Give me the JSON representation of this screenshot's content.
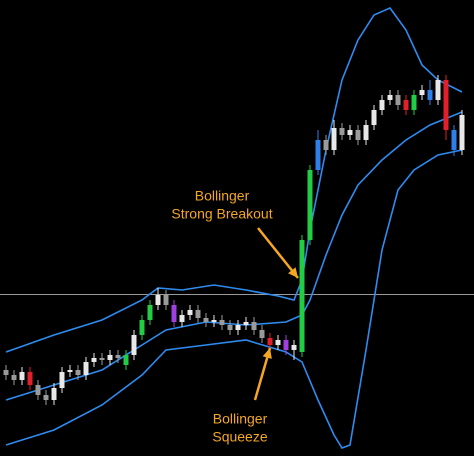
{
  "chart_data": {
    "type": "candlestick",
    "background": "#000000",
    "categories": [
      null,
      null,
      null,
      null,
      null,
      null,
      null,
      null,
      null,
      null,
      null,
      null,
      null,
      null,
      null,
      null,
      null,
      null,
      null,
      null,
      null,
      null,
      null,
      null,
      null,
      null,
      null,
      null,
      null,
      null,
      null,
      null,
      null,
      null,
      null,
      null,
      null,
      null,
      null,
      null,
      null,
      null,
      null,
      null,
      null,
      null,
      null,
      null,
      null,
      null,
      null,
      null,
      null,
      null,
      null,
      null,
      null,
      null
    ],
    "xlim": [
      -0.75,
      58.5
    ],
    "ylim": [
      0,
      456
    ],
    "open": [
      86,
      81,
      76,
      84,
      71,
      61,
      56,
      68,
      84,
      86,
      81,
      94,
      98,
      96,
      101,
      91,
      101,
      121,
      136,
      151,
      161,
      151,
      134,
      141,
      146,
      138,
      134,
      136,
      131,
      126,
      131,
      134,
      126,
      118,
      111,
      116,
      106,
      104,
      216,
      286,
      316,
      306,
      328,
      321,
      326,
      316,
      331,
      346,
      356,
      361,
      356,
      346,
      361,
      366,
      356,
      376,
      326,
      306
    ],
    "high": [
      91,
      86,
      89,
      89,
      76,
      66,
      73,
      89,
      91,
      91,
      99,
      103,
      103,
      106,
      106,
      106,
      126,
      141,
      156,
      168,
      166,
      156,
      146,
      151,
      151,
      143,
      141,
      141,
      136,
      136,
      139,
      139,
      131,
      123,
      121,
      121,
      116,
      221,
      291,
      326,
      321,
      336,
      333,
      331,
      331,
      336,
      351,
      361,
      366,
      366,
      361,
      366,
      371,
      376,
      381,
      381,
      331,
      346
    ],
    "low": [
      76,
      71,
      71,
      66,
      56,
      51,
      51,
      63,
      79,
      76,
      76,
      89,
      91,
      91,
      93,
      86,
      96,
      116,
      131,
      146,
      146,
      129,
      129,
      136,
      133,
      129,
      129,
      126,
      121,
      121,
      126,
      121,
      113,
      106,
      106,
      101,
      96,
      99,
      211,
      281,
      301,
      301,
      316,
      316,
      311,
      311,
      326,
      341,
      351,
      346,
      341,
      341,
      356,
      351,
      351,
      316,
      300,
      301
    ],
    "close": [
      81,
      76,
      84,
      71,
      61,
      56,
      68,
      84,
      86,
      81,
      94,
      98,
      96,
      101,
      98,
      101,
      121,
      136,
      151,
      161,
      151,
      134,
      141,
      146,
      138,
      134,
      136,
      131,
      126,
      131,
      134,
      126,
      118,
      111,
      116,
      106,
      111,
      216,
      286,
      316,
      306,
      328,
      321,
      326,
      316,
      331,
      346,
      356,
      361,
      351,
      346,
      361,
      366,
      356,
      376,
      326,
      306,
      341
    ],
    "colors": [
      "#9a9a9a",
      "#9a9a9a",
      "#e8e8e8",
      "#e0202a",
      "#9a9a9a",
      "#9a9a9a",
      "#e8e8e8",
      "#e8e8e8",
      "#e8e8e8",
      "#9a9a9a",
      "#e8e8e8",
      "#e8e8e8",
      "#9a9a9a",
      "#e8e8e8",
      "#9a9a9a",
      "#22cc44",
      "#e8e8e8",
      "#22cc44",
      "#22cc44",
      "#e8e8e8",
      "#9a9a9a",
      "#a040e0",
      "#e8e8e8",
      "#e8e8e8",
      "#9a9a9a",
      "#9a9a9a",
      "#e8e8e8",
      "#9a9a9a",
      "#9a9a9a",
      "#e8e8e8",
      "#e8e8e8",
      "#9a9a9a",
      "#9a9a9a",
      "#e0202a",
      "#e8e8e8",
      "#a040e0",
      "#e8e8e8",
      "#22cc44",
      "#22cc44",
      "#2f7fe8",
      "#9a9a9a",
      "#e8e8e8",
      "#9a9a9a",
      "#e8e8e8",
      "#9a9a9a",
      "#e8e8e8",
      "#e8e8e8",
      "#e8e8e8",
      "#e8e8e8",
      "#9a9a9a",
      "#e0202a",
      "#22cc44",
      "#e8e8e8",
      "#2f7fe8",
      "#e8e8e8",
      "#e0202a",
      "#2f7fe8",
      "#e8e8e8"
    ],
    "bands": [
      {
        "color": "#2e8cf0",
        "x": [
          0,
          6,
          12,
          17,
          19,
          22,
          26,
          30,
          34,
          36,
          37,
          38,
          40,
          42,
          44,
          46,
          48,
          50,
          52,
          54,
          57
        ],
        "values": [
          104,
          121,
          136,
          156,
          168,
          166,
          171,
          166,
          160,
          156,
          176,
          226,
          306,
          376,
          416,
          441,
          448,
          426,
          391,
          376,
          364
        ]
      },
      {
        "color": "#2e8cf0",
        "x": [
          0,
          6,
          12,
          17,
          20,
          25,
          30,
          35,
          37,
          38,
          40,
          42,
          44,
          47,
          50,
          53,
          57
        ],
        "values": [
          56,
          71,
          86,
          111,
          126,
          134,
          131,
          134,
          141,
          156,
          201,
          241,
          271,
          296,
          316,
          331,
          344
        ]
      },
      {
        "color": "#2e8cf0",
        "x": [
          0,
          6,
          12,
          17,
          20,
          25,
          30,
          35,
          37,
          39,
          41,
          42,
          43,
          45,
          47,
          49,
          51,
          54,
          57
        ],
        "values": [
          11,
          26,
          51,
          81,
          106,
          111,
          116,
          104,
          94,
          56,
          21,
          8,
          11,
          106,
          206,
          266,
          286,
          301,
          306
        ]
      }
    ],
    "annotations": [
      {
        "color": "#f5a623",
        "lines": [
          "Bollinger",
          "Strong Breakout"
        ]
      },
      {
        "color": "#f5a623",
        "lines": [
          "Bollinger",
          "Squeeze"
        ]
      }
    ]
  }
}
